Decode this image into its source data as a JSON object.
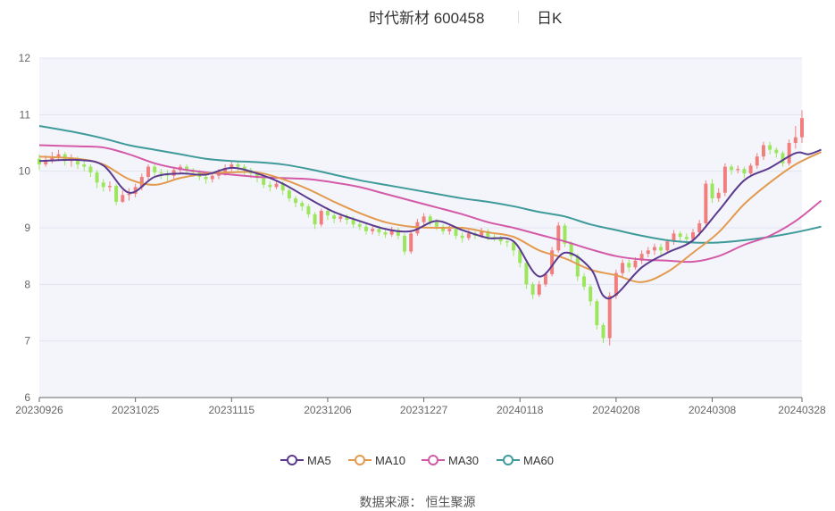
{
  "header": {
    "title": "时代新材 600458",
    "period": "日K"
  },
  "source": {
    "label": "数据来源：",
    "value": "恒生聚源"
  },
  "colors": {
    "up": "#f27d7d",
    "down": "#9be65a",
    "ma5": "#5b3a8e",
    "ma10": "#e39a4f",
    "ma30": "#d45aa8",
    "ma60": "#3f9a9a",
    "plot_bg": "#f3f5fb",
    "grid": "#e2e5ef"
  },
  "chart_data": {
    "type": "candlestick",
    "title": "时代新材 600458",
    "subtitle": "日K",
    "ylim": [
      6,
      12
    ],
    "yticks": [
      6,
      7,
      8,
      9,
      10,
      11,
      12
    ],
    "x_tick_labels": [
      "20230926",
      "20231025",
      "20231115",
      "20231206",
      "20231227",
      "20240118",
      "20240208",
      "20240308",
      "20240328"
    ],
    "grid": true,
    "legend_position": "bottom",
    "dates": [
      "20230926",
      "20230927",
      "20230928",
      "20231009",
      "20231010",
      "20231011",
      "20231012",
      "20231013",
      "20231016",
      "20231017",
      "20231018",
      "20231019",
      "20231020",
      "20231023",
      "20231024",
      "20231025",
      "20231026",
      "20231027",
      "20231030",
      "20231031",
      "20231101",
      "20231102",
      "20231103",
      "20231106",
      "20231107",
      "20231108",
      "20231109",
      "20231110",
      "20231113",
      "20231114",
      "20231115",
      "20231116",
      "20231117",
      "20231120",
      "20231121",
      "20231122",
      "20231123",
      "20231124",
      "20231127",
      "20231128",
      "20231129",
      "20231130",
      "20231201",
      "20231204",
      "20231205",
      "20231206",
      "20231207",
      "20231208",
      "20231211",
      "20231212",
      "20231213",
      "20231214",
      "20231215",
      "20231218",
      "20231219",
      "20231220",
      "20231221",
      "20231222",
      "20231225",
      "20231226",
      "20231227",
      "20231228",
      "20231229",
      "20240102",
      "20240103",
      "20240104",
      "20240105",
      "20240108",
      "20240109",
      "20240110",
      "20240111",
      "20240112",
      "20240115",
      "20240116",
      "20240117",
      "20240118",
      "20240119",
      "20240122",
      "20240123",
      "20240124",
      "20240125",
      "20240126",
      "20240129",
      "20240130",
      "20240131",
      "20240201",
      "20240202",
      "20240205",
      "20240206",
      "20240207",
      "20240208",
      "20240219",
      "20240220",
      "20240221",
      "20240222",
      "20240223",
      "20240226",
      "20240227",
      "20240228",
      "20240229",
      "20240301",
      "20240304",
      "20240305",
      "20240306",
      "20240307",
      "20240308",
      "20240311",
      "20240312",
      "20240313",
      "20240314",
      "20240315",
      "20240318",
      "20240319",
      "20240320",
      "20240321",
      "20240322",
      "20240325",
      "20240326",
      "20240327",
      "20240328"
    ],
    "candles": [
      [
        10.22,
        10.12,
        10.02,
        10.3
      ],
      [
        10.12,
        10.2,
        10.08,
        10.28
      ],
      [
        10.2,
        10.25,
        10.14,
        10.34
      ],
      [
        10.25,
        10.3,
        10.18,
        10.38
      ],
      [
        10.3,
        10.18,
        10.1,
        10.34
      ],
      [
        10.18,
        10.22,
        10.08,
        10.3
      ],
      [
        10.22,
        10.12,
        10.04,
        10.26
      ],
      [
        10.12,
        10.08,
        10.0,
        10.18
      ],
      [
        10.08,
        9.98,
        9.9,
        10.12
      ],
      [
        9.98,
        9.8,
        9.7,
        10.02
      ],
      [
        9.8,
        9.72,
        9.64,
        9.86
      ],
      [
        9.72,
        9.74,
        9.64,
        9.82
      ],
      [
        9.74,
        9.46,
        9.4,
        9.78
      ],
      [
        9.46,
        9.58,
        9.44,
        9.66
      ],
      [
        9.58,
        9.6,
        9.48,
        9.7
      ],
      [
        9.6,
        9.72,
        9.54,
        9.78
      ],
      [
        9.72,
        9.9,
        9.66,
        9.96
      ],
      [
        9.9,
        10.08,
        9.84,
        10.12
      ],
      [
        10.08,
        9.98,
        9.9,
        10.12
      ],
      [
        9.98,
        9.96,
        9.86,
        10.04
      ],
      [
        9.96,
        9.92,
        9.82,
        10.02
      ],
      [
        9.92,
        10.02,
        9.86,
        10.08
      ],
      [
        10.02,
        10.08,
        9.96,
        10.12
      ],
      [
        10.08,
        10.02,
        9.94,
        10.12
      ],
      [
        10.02,
        9.98,
        9.9,
        10.06
      ],
      [
        9.98,
        9.9,
        9.84,
        10.02
      ],
      [
        9.9,
        9.86,
        9.78,
        9.96
      ],
      [
        9.86,
        9.92,
        9.8,
        9.98
      ],
      [
        9.92,
        9.98,
        9.86,
        10.04
      ],
      [
        9.98,
        10.06,
        9.92,
        10.12
      ],
      [
        10.06,
        10.12,
        10.0,
        10.18
      ],
      [
        10.12,
        10.08,
        10.0,
        10.16
      ],
      [
        10.08,
        10.02,
        9.94,
        10.12
      ],
      [
        10.02,
        9.96,
        9.88,
        10.06
      ],
      [
        9.96,
        9.88,
        9.8,
        10.0
      ],
      [
        9.88,
        9.76,
        9.7,
        9.92
      ],
      [
        9.76,
        9.72,
        9.64,
        9.82
      ],
      [
        9.72,
        9.78,
        9.68,
        9.84
      ],
      [
        9.78,
        9.66,
        9.58,
        9.82
      ],
      [
        9.66,
        9.52,
        9.46,
        9.7
      ],
      [
        9.52,
        9.44,
        9.36,
        9.56
      ],
      [
        9.44,
        9.38,
        9.3,
        9.48
      ],
      [
        9.38,
        9.24,
        9.18,
        9.42
      ],
      [
        9.24,
        9.06,
        8.98,
        9.28
      ],
      [
        9.06,
        9.3,
        9.02,
        9.34
      ],
      [
        9.3,
        9.22,
        9.14,
        9.36
      ],
      [
        9.22,
        9.16,
        9.08,
        9.28
      ],
      [
        9.16,
        9.2,
        9.1,
        9.26
      ],
      [
        9.2,
        9.14,
        9.06,
        9.24
      ],
      [
        9.14,
        9.06,
        9.0,
        9.2
      ],
      [
        9.06,
        9.02,
        8.96,
        9.12
      ],
      [
        9.02,
        8.94,
        8.88,
        9.08
      ],
      [
        8.94,
        8.98,
        8.88,
        9.04
      ],
      [
        8.98,
        8.92,
        8.86,
        9.04
      ],
      [
        8.92,
        8.88,
        8.82,
        8.98
      ],
      [
        8.88,
        8.96,
        8.84,
        9.02
      ],
      [
        8.96,
        8.86,
        8.8,
        9.0
      ],
      [
        8.86,
        8.58,
        8.52,
        8.9
      ],
      [
        8.58,
        8.9,
        8.54,
        8.96
      ],
      [
        8.9,
        9.1,
        8.86,
        9.16
      ],
      [
        9.1,
        9.2,
        9.04,
        9.26
      ],
      [
        9.2,
        9.1,
        9.04,
        9.24
      ],
      [
        9.1,
        9.02,
        8.96,
        9.16
      ],
      [
        9.02,
        8.94,
        8.88,
        9.06
      ],
      [
        8.94,
        8.98,
        8.88,
        9.04
      ],
      [
        8.98,
        8.86,
        8.8,
        9.02
      ],
      [
        8.86,
        8.82,
        8.74,
        8.92
      ],
      [
        8.82,
        8.9,
        8.78,
        8.96
      ],
      [
        8.9,
        8.86,
        8.8,
        8.94
      ],
      [
        8.86,
        8.94,
        8.82,
        9.0
      ],
      [
        8.94,
        8.84,
        8.78,
        8.98
      ],
      [
        8.84,
        8.82,
        8.76,
        8.9
      ],
      [
        8.82,
        8.76,
        8.7,
        8.86
      ],
      [
        8.76,
        8.74,
        8.66,
        8.8
      ],
      [
        8.74,
        8.6,
        8.5,
        8.78
      ],
      [
        8.6,
        8.38,
        8.3,
        8.62
      ],
      [
        8.38,
        8.0,
        7.92,
        8.42
      ],
      [
        8.0,
        7.82,
        7.74,
        8.04
      ],
      [
        7.82,
        8.0,
        7.78,
        8.06
      ],
      [
        8.0,
        8.18,
        7.96,
        8.22
      ],
      [
        8.18,
        8.6,
        8.14,
        8.66
      ],
      [
        8.6,
        9.04,
        8.56,
        9.1
      ],
      [
        9.04,
        8.72,
        8.66,
        9.08
      ],
      [
        8.72,
        8.5,
        8.42,
        8.76
      ],
      [
        8.5,
        8.14,
        8.06,
        8.54
      ],
      [
        8.14,
        7.96,
        7.9,
        8.2
      ],
      [
        7.96,
        7.7,
        7.62,
        8.0
      ],
      [
        7.7,
        7.28,
        7.2,
        7.74
      ],
      [
        7.28,
        7.05,
        6.96,
        7.32
      ],
      [
        7.05,
        7.8,
        6.92,
        7.86
      ],
      [
        7.8,
        8.2,
        7.74,
        8.26
      ],
      [
        8.2,
        8.38,
        8.12,
        8.44
      ],
      [
        8.38,
        8.3,
        8.22,
        8.44
      ],
      [
        8.3,
        8.42,
        8.26,
        8.48
      ],
      [
        8.42,
        8.54,
        8.36,
        8.6
      ],
      [
        8.54,
        8.6,
        8.48,
        8.66
      ],
      [
        8.6,
        8.66,
        8.52,
        8.72
      ],
      [
        8.66,
        8.6,
        8.52,
        8.72
      ],
      [
        8.6,
        8.76,
        8.56,
        8.8
      ],
      [
        8.76,
        8.9,
        8.7,
        8.96
      ],
      [
        8.9,
        8.84,
        8.76,
        8.94
      ],
      [
        8.84,
        8.8,
        8.72,
        8.9
      ],
      [
        8.8,
        8.92,
        8.74,
        8.98
      ],
      [
        8.92,
        9.08,
        8.86,
        9.14
      ],
      [
        9.08,
        9.78,
        9.04,
        9.84
      ],
      [
        9.78,
        9.52,
        9.44,
        9.86
      ],
      [
        9.52,
        9.62,
        9.46,
        9.7
      ],
      [
        9.62,
        10.08,
        9.56,
        10.14
      ],
      [
        10.08,
        10.02,
        9.94,
        10.12
      ],
      [
        10.02,
        10.04,
        9.96,
        10.1
      ],
      [
        10.04,
        9.96,
        9.88,
        10.08
      ],
      [
        9.96,
        10.1,
        9.9,
        10.14
      ],
      [
        10.1,
        10.26,
        10.04,
        10.32
      ],
      [
        10.26,
        10.46,
        10.2,
        10.52
      ],
      [
        10.46,
        10.38,
        10.3,
        10.52
      ],
      [
        10.38,
        10.32,
        10.24,
        10.42
      ],
      [
        10.32,
        10.14,
        10.08,
        10.36
      ],
      [
        10.14,
        10.5,
        10.1,
        10.56
      ],
      [
        10.5,
        10.6,
        10.4,
        10.8
      ],
      [
        10.6,
        10.94,
        10.5,
        11.08
      ]
    ],
    "series": [
      {
        "name": "MA5",
        "points": [
          [
            0,
            10.18
          ],
          [
            6,
            10.2
          ],
          [
            10,
            10.1
          ],
          [
            14,
            9.62
          ],
          [
            18,
            9.9
          ],
          [
            22,
            9.96
          ],
          [
            26,
            9.94
          ],
          [
            30,
            10.06
          ],
          [
            34,
            9.96
          ],
          [
            38,
            9.78
          ],
          [
            42,
            9.52
          ],
          [
            46,
            9.28
          ],
          [
            50,
            9.12
          ],
          [
            54,
            8.98
          ],
          [
            58,
            8.94
          ],
          [
            62,
            9.12
          ],
          [
            66,
            8.96
          ],
          [
            70,
            8.82
          ],
          [
            74,
            8.76
          ],
          [
            78,
            8.14
          ],
          [
            82,
            8.56
          ],
          [
            86,
            8.28
          ],
          [
            88,
            7.8
          ],
          [
            90,
            7.82
          ],
          [
            94,
            8.3
          ],
          [
            98,
            8.56
          ],
          [
            102,
            8.78
          ],
          [
            106,
            9.3
          ],
          [
            110,
            9.84
          ],
          [
            114,
            10.06
          ],
          [
            118,
            10.32
          ],
          [
            120,
            10.3
          ],
          [
            122,
            10.38
          ]
        ]
      },
      {
        "name": "MA10",
        "points": [
          [
            0,
            10.26
          ],
          [
            6,
            10.22
          ],
          [
            10,
            10.12
          ],
          [
            14,
            9.86
          ],
          [
            18,
            9.76
          ],
          [
            22,
            9.88
          ],
          [
            26,
            9.96
          ],
          [
            30,
            9.98
          ],
          [
            34,
            9.98
          ],
          [
            38,
            9.86
          ],
          [
            42,
            9.68
          ],
          [
            46,
            9.46
          ],
          [
            50,
            9.26
          ],
          [
            54,
            9.1
          ],
          [
            58,
            9.02
          ],
          [
            62,
            9.0
          ],
          [
            66,
            9.0
          ],
          [
            70,
            8.92
          ],
          [
            74,
            8.84
          ],
          [
            78,
            8.6
          ],
          [
            82,
            8.46
          ],
          [
            86,
            8.26
          ],
          [
            90,
            8.16
          ],
          [
            94,
            8.04
          ],
          [
            98,
            8.22
          ],
          [
            102,
            8.56
          ],
          [
            106,
            8.92
          ],
          [
            110,
            9.42
          ],
          [
            114,
            9.8
          ],
          [
            118,
            10.12
          ],
          [
            122,
            10.34
          ]
        ]
      },
      {
        "name": "MA30",
        "points": [
          [
            0,
            10.46
          ],
          [
            6,
            10.44
          ],
          [
            10,
            10.42
          ],
          [
            14,
            10.3
          ],
          [
            18,
            10.14
          ],
          [
            22,
            10.04
          ],
          [
            26,
            9.98
          ],
          [
            30,
            9.94
          ],
          [
            34,
            9.9
          ],
          [
            38,
            9.88
          ],
          [
            42,
            9.86
          ],
          [
            46,
            9.8
          ],
          [
            50,
            9.72
          ],
          [
            54,
            9.6
          ],
          [
            58,
            9.48
          ],
          [
            62,
            9.36
          ],
          [
            66,
            9.24
          ],
          [
            70,
            9.1
          ],
          [
            74,
            9.0
          ],
          [
            78,
            8.88
          ],
          [
            82,
            8.76
          ],
          [
            86,
            8.62
          ],
          [
            90,
            8.5
          ],
          [
            94,
            8.44
          ],
          [
            98,
            8.42
          ],
          [
            102,
            8.4
          ],
          [
            106,
            8.5
          ],
          [
            110,
            8.7
          ],
          [
            114,
            8.86
          ],
          [
            118,
            9.12
          ],
          [
            122,
            9.48
          ]
        ]
      },
      {
        "name": "MA60",
        "points": [
          [
            0,
            10.8
          ],
          [
            6,
            10.68
          ],
          [
            10,
            10.58
          ],
          [
            14,
            10.46
          ],
          [
            18,
            10.38
          ],
          [
            22,
            10.3
          ],
          [
            26,
            10.22
          ],
          [
            30,
            10.18
          ],
          [
            34,
            10.16
          ],
          [
            38,
            10.12
          ],
          [
            42,
            10.04
          ],
          [
            46,
            9.94
          ],
          [
            50,
            9.84
          ],
          [
            54,
            9.76
          ],
          [
            58,
            9.68
          ],
          [
            62,
            9.6
          ],
          [
            66,
            9.52
          ],
          [
            70,
            9.46
          ],
          [
            74,
            9.38
          ],
          [
            78,
            9.28
          ],
          [
            82,
            9.2
          ],
          [
            86,
            9.06
          ],
          [
            90,
            8.96
          ],
          [
            94,
            8.86
          ],
          [
            98,
            8.78
          ],
          [
            102,
            8.74
          ],
          [
            106,
            8.74
          ],
          [
            110,
            8.78
          ],
          [
            114,
            8.84
          ],
          [
            118,
            8.92
          ],
          [
            122,
            9.02
          ]
        ]
      }
    ]
  }
}
